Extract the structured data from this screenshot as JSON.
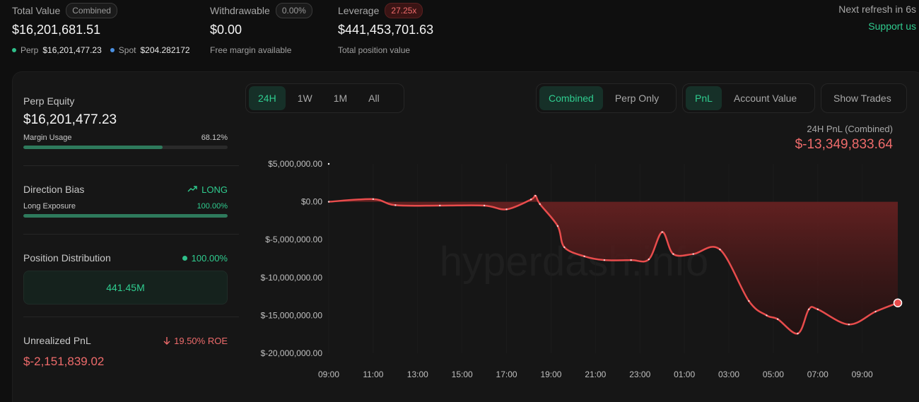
{
  "header": {
    "total_value": {
      "label": "Total Value",
      "chip": "Combined",
      "value": "$16,201,681.51",
      "perp_label": "Perp",
      "perp_value": "$16,201,477.23",
      "spot_label": "Spot",
      "spot_value": "$204.282172"
    },
    "withdrawable": {
      "label": "Withdrawable",
      "chip": "0.00%",
      "value": "$0.00",
      "sub": "Free margin available"
    },
    "leverage": {
      "label": "Leverage",
      "chip": "27.25x",
      "value": "$441,453,701.63",
      "sub": "Total position value"
    },
    "refresh": "Next refresh in 6s",
    "support": "Support us"
  },
  "left_panel": {
    "perp_equity": {
      "label": "Perp Equity",
      "value": "$16,201,477.23",
      "margin_label": "Margin Usage",
      "margin_value": "68.12%",
      "margin_fraction": 0.6812
    },
    "direction": {
      "label": "Direction Bias",
      "value": "LONG",
      "exposure_label": "Long Exposure",
      "exposure_value": "100.00%",
      "exposure_fraction": 1.0
    },
    "distribution": {
      "label": "Position Distribution",
      "value": "100.00%",
      "box": "441.45M"
    },
    "unrealized": {
      "label": "Unrealized PnL",
      "roe": "19.50% ROE",
      "value": "$-2,151,839.02"
    }
  },
  "controls": {
    "ranges": [
      "24H",
      "1W",
      "1M",
      "All"
    ],
    "active_range": "24H",
    "modes": [
      "Combined",
      "Perp Only"
    ],
    "active_mode": "Combined",
    "metrics": [
      "PnL",
      "Account Value"
    ],
    "active_metric": "PnL",
    "show_trades": "Show Trades"
  },
  "chart_header": {
    "label": "24H PnL (Combined)",
    "value": "$-13,349,833.64"
  },
  "watermark": "hyperdash.info",
  "colors": {
    "accent": "#2fcc8f",
    "loss": "#ee6b6b",
    "line": "#e84c4c"
  },
  "chart_data": {
    "type": "area",
    "ylabel": "",
    "xlabel": "",
    "ylim": [
      -20000000,
      5000000
    ],
    "y_ticks": [
      5000000,
      0,
      -5000000,
      -10000000,
      -15000000,
      -20000000
    ],
    "y_tick_labels": [
      "$5,000,000.00",
      "$0.00",
      "$-5,000,000.00",
      "$-10,000,000.00",
      "$-15,000,000.00",
      "$-20,000,000.00"
    ],
    "x_tick_labels": [
      "09:00",
      "11:00",
      "13:00",
      "15:00",
      "17:00",
      "19:00",
      "21:00",
      "23:00",
      "01:00",
      "03:00",
      "05:00",
      "07:00",
      "09:00"
    ],
    "x_range": [
      0,
      25.6
    ],
    "series": [
      {
        "x": [
          0,
          2,
          3,
          5,
          7,
          8,
          9.1,
          9.3,
          9.5,
          10.3,
          10.6,
          11.5,
          12.4,
          13.6,
          14.4,
          15,
          15.5,
          16.4,
          17.6,
          18.9,
          19.7,
          20.2,
          21.1,
          21.6,
          22,
          23.4,
          24.6,
          25.6
        ],
        "values": [
          0,
          350000,
          -450000,
          -500000,
          -500000,
          -1000000,
          300000,
          800000,
          -300000,
          -3200000,
          -6000000,
          -7200000,
          -7700000,
          -7700000,
          -7600000,
          -4000000,
          -6900000,
          -6900000,
          -6300000,
          -13100000,
          -15000000,
          -15500000,
          -17400000,
          -14200000,
          -14200000,
          -16200000,
          -14500000,
          -13350000
        ]
      }
    ]
  }
}
